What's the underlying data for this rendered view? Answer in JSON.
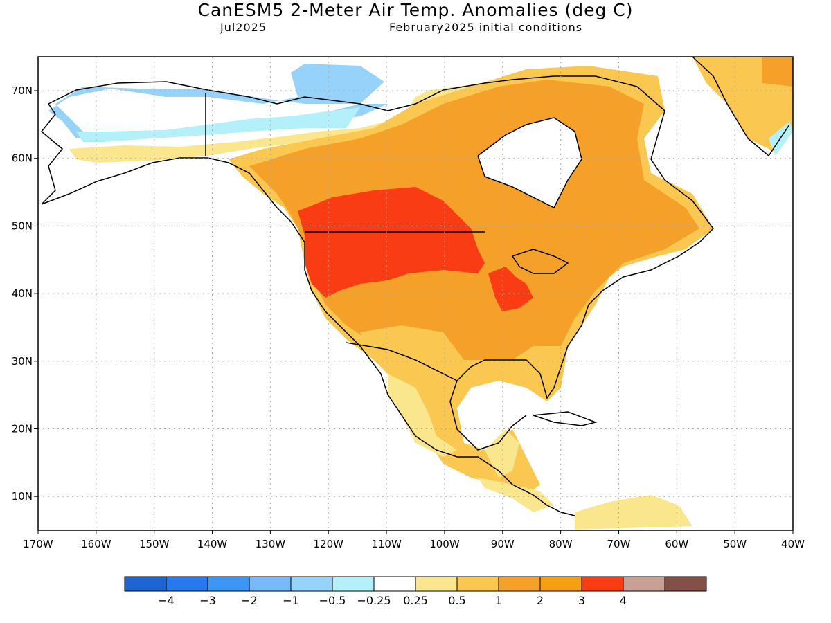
{
  "title": "CanESM5 2-Meter Air Temp. Anomalies (deg C)",
  "subtitle_left": "Jul2025",
  "subtitle_right": "February2025 initial conditions",
  "lat_labels": [
    "70N",
    "60N",
    "50N",
    "40N",
    "30N",
    "20N",
    "10N"
  ],
  "lon_labels": [
    "170W",
    "160W",
    "150W",
    "140W",
    "130W",
    "120W",
    "110W",
    "100W",
    "90W",
    "80W",
    "70W",
    "60W",
    "50W",
    "40W"
  ],
  "colorbar": {
    "colors": [
      "#1e64d2",
      "#2878ee",
      "#3c96f5",
      "#78b9fa",
      "#96d2fa",
      "#b4f0fa",
      "#ffffff",
      "#fae68c",
      "#fac850",
      "#f5a028",
      "#f5a014",
      "#fa3c14",
      "#c8a096",
      "#825046"
    ],
    "labels": [
      "-4",
      "-3",
      "-2",
      "-1",
      "-0.5",
      "-0.25",
      "0.25",
      "0.5",
      "1",
      "2",
      "3",
      "4"
    ]
  },
  "map_colors": {
    "ocean": "#ffffff",
    "cold_strong": "#96d2fa",
    "cold_light": "#b4f0fa",
    "neutral": "#ffffff",
    "warm_light": "#fae68c",
    "warm": "#fac850",
    "warm_mid": "#f5a028",
    "hot": "#fa3c14",
    "coast": "#000000",
    "grid": "#aaaaaa"
  }
}
